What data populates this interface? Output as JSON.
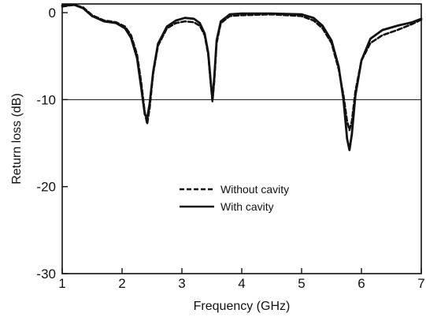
{
  "chart_data": {
    "type": "line",
    "xlabel": "Frequency (GHz)",
    "ylabel": "Return loss (dB)",
    "xlim": [
      1,
      7
    ],
    "ylim": [
      -30,
      1
    ],
    "x_ticks": [
      1,
      2,
      3,
      4,
      5,
      6,
      7
    ],
    "y_ticks": [
      0,
      -10,
      -20,
      -30
    ],
    "grid": false,
    "legend_position": "center",
    "reference_line": {
      "y": -10,
      "style": "thin horizontal line"
    },
    "series": [
      {
        "name": "Without cavity",
        "line_style": "dashed",
        "color": "#111111",
        "points": [
          [
            1.0,
            0.7
          ],
          [
            1.2,
            0.9
          ],
          [
            1.35,
            0.6
          ],
          [
            1.5,
            -0.3
          ],
          [
            1.7,
            -0.9
          ],
          [
            1.9,
            -1.1
          ],
          [
            2.05,
            -1.6
          ],
          [
            2.15,
            -2.6
          ],
          [
            2.25,
            -4.8
          ],
          [
            2.32,
            -8.0
          ],
          [
            2.38,
            -11.5
          ],
          [
            2.42,
            -12.8
          ],
          [
            2.46,
            -11.0
          ],
          [
            2.52,
            -7.0
          ],
          [
            2.6,
            -3.8
          ],
          [
            2.75,
            -1.8
          ],
          [
            2.9,
            -1.2
          ],
          [
            3.05,
            -1.0
          ],
          [
            3.2,
            -1.1
          ],
          [
            3.3,
            -1.5
          ],
          [
            3.38,
            -2.6
          ],
          [
            3.44,
            -4.8
          ],
          [
            3.48,
            -8.0
          ],
          [
            3.51,
            -10.2
          ],
          [
            3.54,
            -8.0
          ],
          [
            3.58,
            -3.5
          ],
          [
            3.65,
            -1.2
          ],
          [
            3.8,
            -0.4
          ],
          [
            4.0,
            -0.3
          ],
          [
            4.5,
            -0.2
          ],
          [
            5.0,
            -0.4
          ],
          [
            5.2,
            -0.9
          ],
          [
            5.35,
            -1.8
          ],
          [
            5.5,
            -3.5
          ],
          [
            5.62,
            -6.5
          ],
          [
            5.7,
            -9.5
          ],
          [
            5.76,
            -12.5
          ],
          [
            5.8,
            -13.5
          ],
          [
            5.84,
            -12.5
          ],
          [
            5.9,
            -9.0
          ],
          [
            6.0,
            -5.5
          ],
          [
            6.15,
            -3.5
          ],
          [
            6.35,
            -2.6
          ],
          [
            6.6,
            -2.0
          ],
          [
            6.85,
            -1.3
          ],
          [
            7.0,
            -0.8
          ]
        ]
      },
      {
        "name": "With cavity",
        "line_style": "solid",
        "color": "#111111",
        "points": [
          [
            1.0,
            0.8
          ],
          [
            1.2,
            0.9
          ],
          [
            1.35,
            0.5
          ],
          [
            1.5,
            -0.4
          ],
          [
            1.7,
            -1.0
          ],
          [
            1.9,
            -1.2
          ],
          [
            2.05,
            -1.8
          ],
          [
            2.15,
            -2.9
          ],
          [
            2.25,
            -5.2
          ],
          [
            2.32,
            -8.6
          ],
          [
            2.38,
            -11.7
          ],
          [
            2.42,
            -12.1
          ],
          [
            2.46,
            -10.5
          ],
          [
            2.52,
            -6.8
          ],
          [
            2.6,
            -3.6
          ],
          [
            2.75,
            -1.6
          ],
          [
            2.9,
            -0.9
          ],
          [
            3.05,
            -0.6
          ],
          [
            3.2,
            -0.7
          ],
          [
            3.3,
            -1.2
          ],
          [
            3.38,
            -2.4
          ],
          [
            3.44,
            -4.6
          ],
          [
            3.48,
            -7.8
          ],
          [
            3.51,
            -10.0
          ],
          [
            3.54,
            -7.6
          ],
          [
            3.58,
            -3.2
          ],
          [
            3.65,
            -1.0
          ],
          [
            3.8,
            -0.2
          ],
          [
            4.0,
            -0.1
          ],
          [
            4.5,
            -0.1
          ],
          [
            5.0,
            -0.2
          ],
          [
            5.2,
            -0.6
          ],
          [
            5.35,
            -1.5
          ],
          [
            5.5,
            -3.2
          ],
          [
            5.62,
            -6.2
          ],
          [
            5.7,
            -10.0
          ],
          [
            5.76,
            -14.5
          ],
          [
            5.8,
            -15.8
          ],
          [
            5.84,
            -14.0
          ],
          [
            5.9,
            -9.5
          ],
          [
            6.0,
            -5.5
          ],
          [
            6.15,
            -3.0
          ],
          [
            6.35,
            -2.0
          ],
          [
            6.6,
            -1.5
          ],
          [
            6.85,
            -1.1
          ],
          [
            7.0,
            -0.7
          ]
        ]
      }
    ]
  }
}
